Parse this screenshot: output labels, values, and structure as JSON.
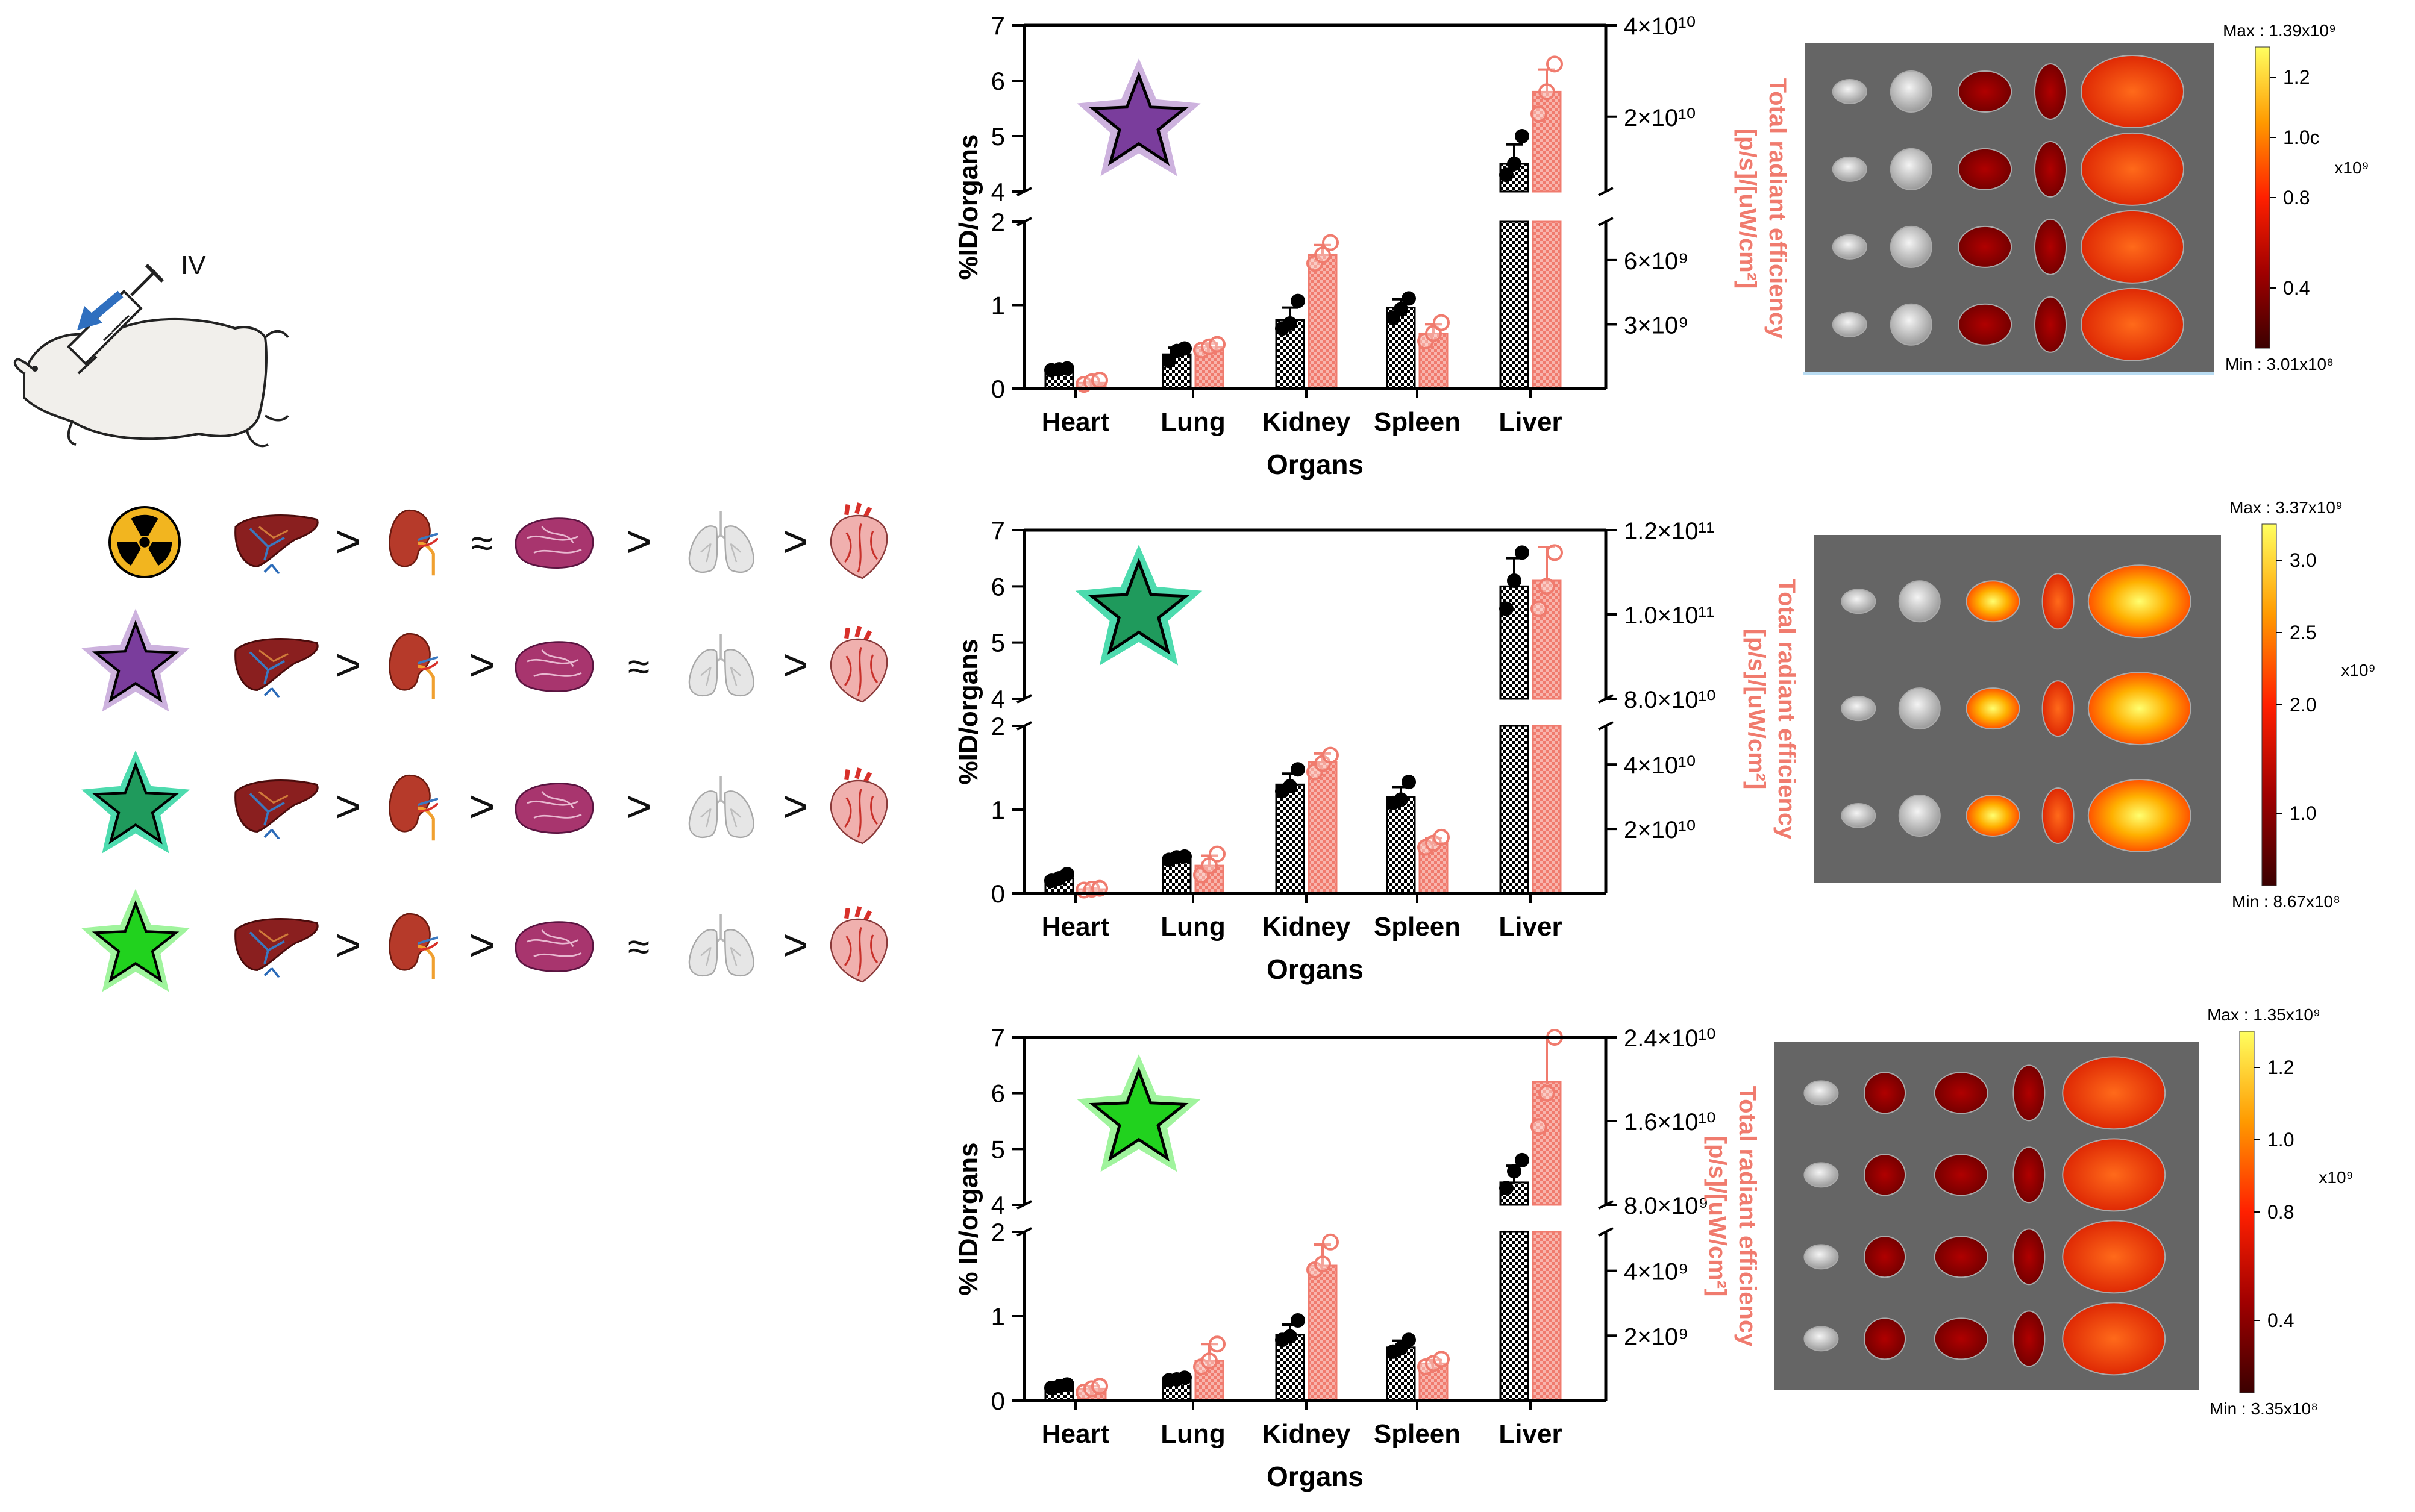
{
  "injection": {
    "route_label": "IV"
  },
  "rankings": {
    "organ_order": [
      "liver",
      "kidney",
      "spleen",
      "lung",
      "heart"
    ],
    "rows": [
      {
        "marker": "radiation-symbol",
        "ops": [
          ">",
          "≈",
          ">",
          ">"
        ]
      },
      {
        "marker": "purple-star",
        "ops": [
          ">",
          ">",
          "≈",
          ">"
        ]
      },
      {
        "marker": "dark-green-star",
        "ops": [
          ">",
          ">",
          ">",
          ">"
        ]
      },
      {
        "marker": "light-green-star",
        "ops": [
          ">",
          ">",
          "≈",
          ">"
        ]
      }
    ]
  },
  "colors": {
    "series_black": "#000000",
    "series_salmon": "#f07b6e",
    "salmon_fill": "#f6a39a",
    "purple_star": "#7a3d9c",
    "purple_halo": "#c4a4d8",
    "dark_green_star": "#1f9a5c",
    "dark_green_halo": "#2ed5a0",
    "light_green_star": "#21d21e",
    "light_green_halo": "#8ff28c",
    "radiation_yellow": "#f2b51f"
  },
  "chart_data": [
    {
      "type": "bar",
      "title": "",
      "marker": "purple-star",
      "categories": [
        "Heart",
        "Lung",
        "Kidney",
        "Spleen",
        "Liver"
      ],
      "xlabel": "Organs",
      "ylabel": "%ID/organs",
      "ylabel_right": "Total radiant efficiency [p/s]/[uW/cm²]",
      "left_axis_segments": [
        {
          "range": [
            0,
            2
          ],
          "ticks": [
            "0",
            "1",
            "2"
          ]
        },
        {
          "range": [
            4,
            7
          ],
          "ticks": [
            "4",
            "5",
            "6",
            "7"
          ]
        }
      ],
      "right_axis_segments": [
        {
          "ticks": [
            "3×10⁹",
            "6×10⁹"
          ]
        },
        {
          "ticks": [
            "2×10¹⁰",
            "4×10¹⁰"
          ]
        }
      ],
      "series": [
        {
          "name": "%ID/organs",
          "values": [
            0.22,
            0.41,
            0.82,
            0.97,
            4.5
          ]
        },
        {
          "name": "Total radiant efficiency",
          "values": [
            0.07,
            0.5,
            1.6,
            0.66,
            5.8
          ]
        }
      ],
      "points": {
        "%ID/organs": [
          [
            0.22,
            0.23,
            0.24
          ],
          [
            0.33,
            0.45,
            0.48
          ],
          [
            0.72,
            0.78,
            1.05
          ],
          [
            0.85,
            0.95,
            1.08
          ],
          [
            4.3,
            4.5,
            5.0
          ]
        ],
        "Total radiant efficiency": [
          [
            0.05,
            0.08,
            0.1
          ],
          [
            0.46,
            0.5,
            0.53
          ],
          [
            1.5,
            1.6,
            1.75
          ],
          [
            0.57,
            0.66,
            0.79
          ],
          [
            5.4,
            5.8,
            6.3
          ]
        ]
      },
      "error": [
        [
          0.02,
          0.01
        ],
        [
          0.08,
          0.04
        ],
        [
          0.15,
          0.12
        ],
        [
          0.1,
          0.11
        ],
        [
          0.35,
          0.4
        ]
      ],
      "image": {
        "max_label": "Max : 1.39x10⁹",
        "min_label": "Min : 3.01x10⁸",
        "scale_ticks": [
          "1.2",
          "1.0c",
          "0.8",
          "0.4"
        ],
        "scale_unit": "x10⁹",
        "cbar_axis": "Total radiant efficiency",
        "cbar_axis2": "[p/s]/[uW/cm²]"
      }
    },
    {
      "type": "bar",
      "title": "",
      "marker": "dark-green-star",
      "categories": [
        "Heart",
        "Lung",
        "Kidney",
        "Spleen",
        "Liver"
      ],
      "xlabel": "Organs",
      "ylabel": "%ID/organs",
      "ylabel_right": "Total radiant efficiency [p/s]/[uW/cm²]",
      "left_axis_segments": [
        {
          "range": [
            0,
            2
          ],
          "ticks": [
            "0",
            "1",
            "2"
          ]
        },
        {
          "range": [
            4,
            7
          ],
          "ticks": [
            "4",
            "5",
            "6",
            "7"
          ]
        }
      ],
      "right_axis_segments": [
        {
          "ticks": [
            "2×10¹⁰",
            "4×10¹⁰"
          ]
        },
        {
          "ticks": [
            "8.0×10¹⁰",
            "1.0×10¹¹",
            "1.2×10¹¹"
          ]
        }
      ],
      "series": [
        {
          "name": "%ID/organs",
          "values": [
            0.18,
            0.42,
            1.3,
            1.15,
            6.0
          ]
        },
        {
          "name": "Total radiant efficiency",
          "values": [
            0.05,
            0.33,
            1.57,
            0.6,
            6.1
          ]
        }
      ],
      "points": {
        "%ID/organs": [
          [
            0.15,
            0.18,
            0.23
          ],
          [
            0.4,
            0.43,
            0.44
          ],
          [
            1.22,
            1.28,
            1.48
          ],
          [
            1.08,
            1.12,
            1.33
          ],
          [
            5.6,
            6.1,
            6.6
          ]
        ],
        "Total radiant efficiency": [
          [
            0.04,
            0.05,
            0.06
          ],
          [
            0.22,
            0.33,
            0.47
          ],
          [
            1.45,
            1.55,
            1.65
          ],
          [
            0.55,
            0.6,
            0.67
          ],
          [
            5.6,
            6.0,
            6.6
          ]
        ]
      },
      "error": [
        [
          0.04,
          0.01
        ],
        [
          0.02,
          0.12
        ],
        [
          0.13,
          0.1
        ],
        [
          0.12,
          0.06
        ],
        [
          0.5,
          0.6
        ]
      ],
      "image": {
        "max_label": "Max : 3.37x10⁹",
        "min_label": "Min : 8.67x10⁸",
        "scale_ticks": [
          "3.0",
          "2.5",
          "2.0",
          "1.0"
        ],
        "scale_unit": "x10⁹",
        "cbar_axis": "Total radiant efficiency",
        "cbar_axis2": "[p/s]/[uW/cm²]"
      }
    },
    {
      "type": "bar",
      "title": "",
      "marker": "light-green-star",
      "categories": [
        "Heart",
        "Lung",
        "Kidney",
        "Spleen",
        "Liver"
      ],
      "xlabel": "Organs",
      "ylabel": "% ID/organs",
      "ylabel_right": "Total radiant efficiency [p/s]/[uW/cm²]",
      "left_axis_segments": [
        {
          "range": [
            0,
            2
          ],
          "ticks": [
            "0",
            "1",
            "2"
          ]
        },
        {
          "range": [
            4,
            7
          ],
          "ticks": [
            "4",
            "5",
            "6",
            "7"
          ]
        }
      ],
      "right_axis_segments": [
        {
          "ticks": [
            "2×10⁹",
            "4×10⁹"
          ]
        },
        {
          "ticks": [
            "8.0×10⁹",
            "1.6×10¹⁰",
            "2.4×10¹⁰"
          ]
        }
      ],
      "series": [
        {
          "name": "%ID/organs",
          "values": [
            0.17,
            0.25,
            0.78,
            0.63,
            4.4
          ]
        },
        {
          "name": "Total radiant efficiency",
          "values": [
            0.14,
            0.47,
            1.6,
            0.44,
            6.2
          ]
        }
      ],
      "points": {
        "%ID/organs": [
          [
            0.15,
            0.17,
            0.19
          ],
          [
            0.24,
            0.25,
            0.27
          ],
          [
            0.72,
            0.76,
            0.95
          ],
          [
            0.58,
            0.62,
            0.72
          ],
          [
            4.3,
            4.6,
            4.8
          ]
        ],
        "Total radiant efficiency": [
          [
            0.1,
            0.14,
            0.17
          ],
          [
            0.4,
            0.47,
            0.67
          ],
          [
            1.55,
            1.62,
            1.88
          ],
          [
            0.4,
            0.44,
            0.49
          ],
          [
            5.4,
            6.0,
            7.0
          ]
        ]
      },
      "error": [
        [
          0.03,
          0.03
        ],
        [
          0.02,
          0.2
        ],
        [
          0.12,
          0.25
        ],
        [
          0.08,
          0.04
        ],
        [
          0.3,
          0.8
        ]
      ],
      "image": {
        "max_label": "Max : 1.35x10⁹",
        "min_label": "Min : 3.35x10⁸",
        "scale_ticks": [
          "1.2",
          "1.0",
          "0.8",
          "0.4"
        ],
        "scale_unit": "x10⁹",
        "cbar_axis": "Total radiant efficiency",
        "cbar_axis2": "[p/s]/[uW/cm²]"
      }
    }
  ]
}
